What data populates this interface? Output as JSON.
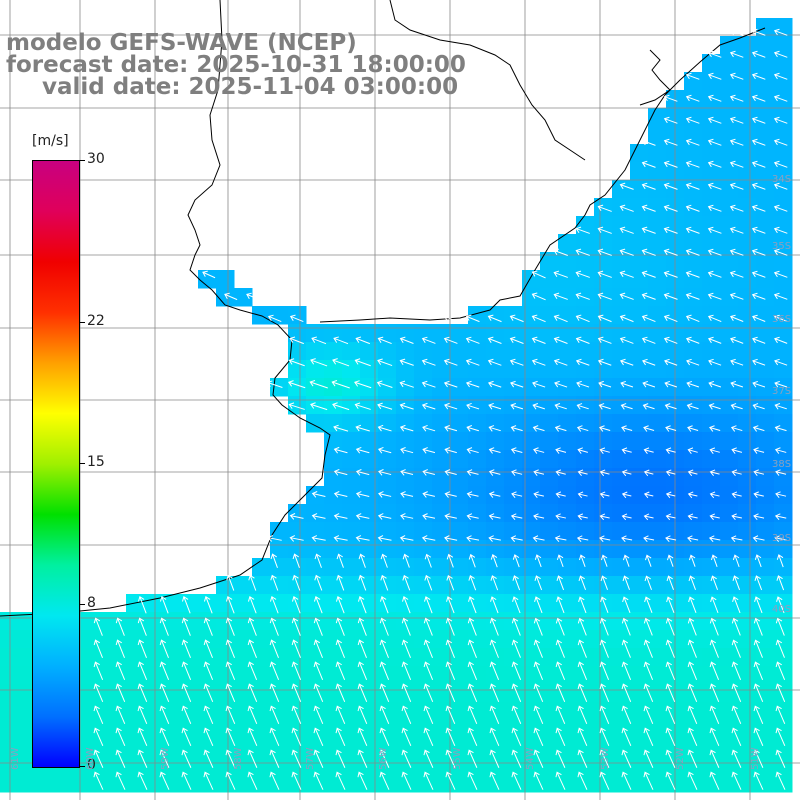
{
  "title": {
    "model": "modelo GEFS-WAVE (NCEP)",
    "forecast": "forecast date: 2025-10-31 18:00:00",
    "valid": "valid date: 2025-11-04 03:00:00"
  },
  "colorbar": {
    "unit": "[m/s]",
    "ticks": [
      "30",
      "22",
      "15",
      "8",
      "0"
    ],
    "tick_values": [
      30,
      22,
      15,
      8,
      0
    ],
    "min": 0,
    "max": 30,
    "colors": [
      "#0000ff",
      "#0070ff",
      "#00b0ff",
      "#00e8f0",
      "#00f0a0",
      "#00e000",
      "#a0f000",
      "#ffff00",
      "#ffa000",
      "#ff3000",
      "#f00000",
      "#e0005a",
      "#c80080"
    ]
  },
  "lat_labels": [
    "34S",
    "35S",
    "36S",
    "37S",
    "38S",
    "39S",
    "40S"
  ],
  "lon_labels": [
    "61W",
    "60W",
    "59W",
    "58W",
    "57W",
    "56W",
    "55W",
    "54W",
    "53W",
    "52W",
    "51W"
  ],
  "field": {
    "variable": "wind speed",
    "direction": "mostly toward northwest (onshore)",
    "max_region": "south, about 9-10 m/s",
    "min_region": "offshore around 37S-38S, about 2-4 m/s"
  }
}
